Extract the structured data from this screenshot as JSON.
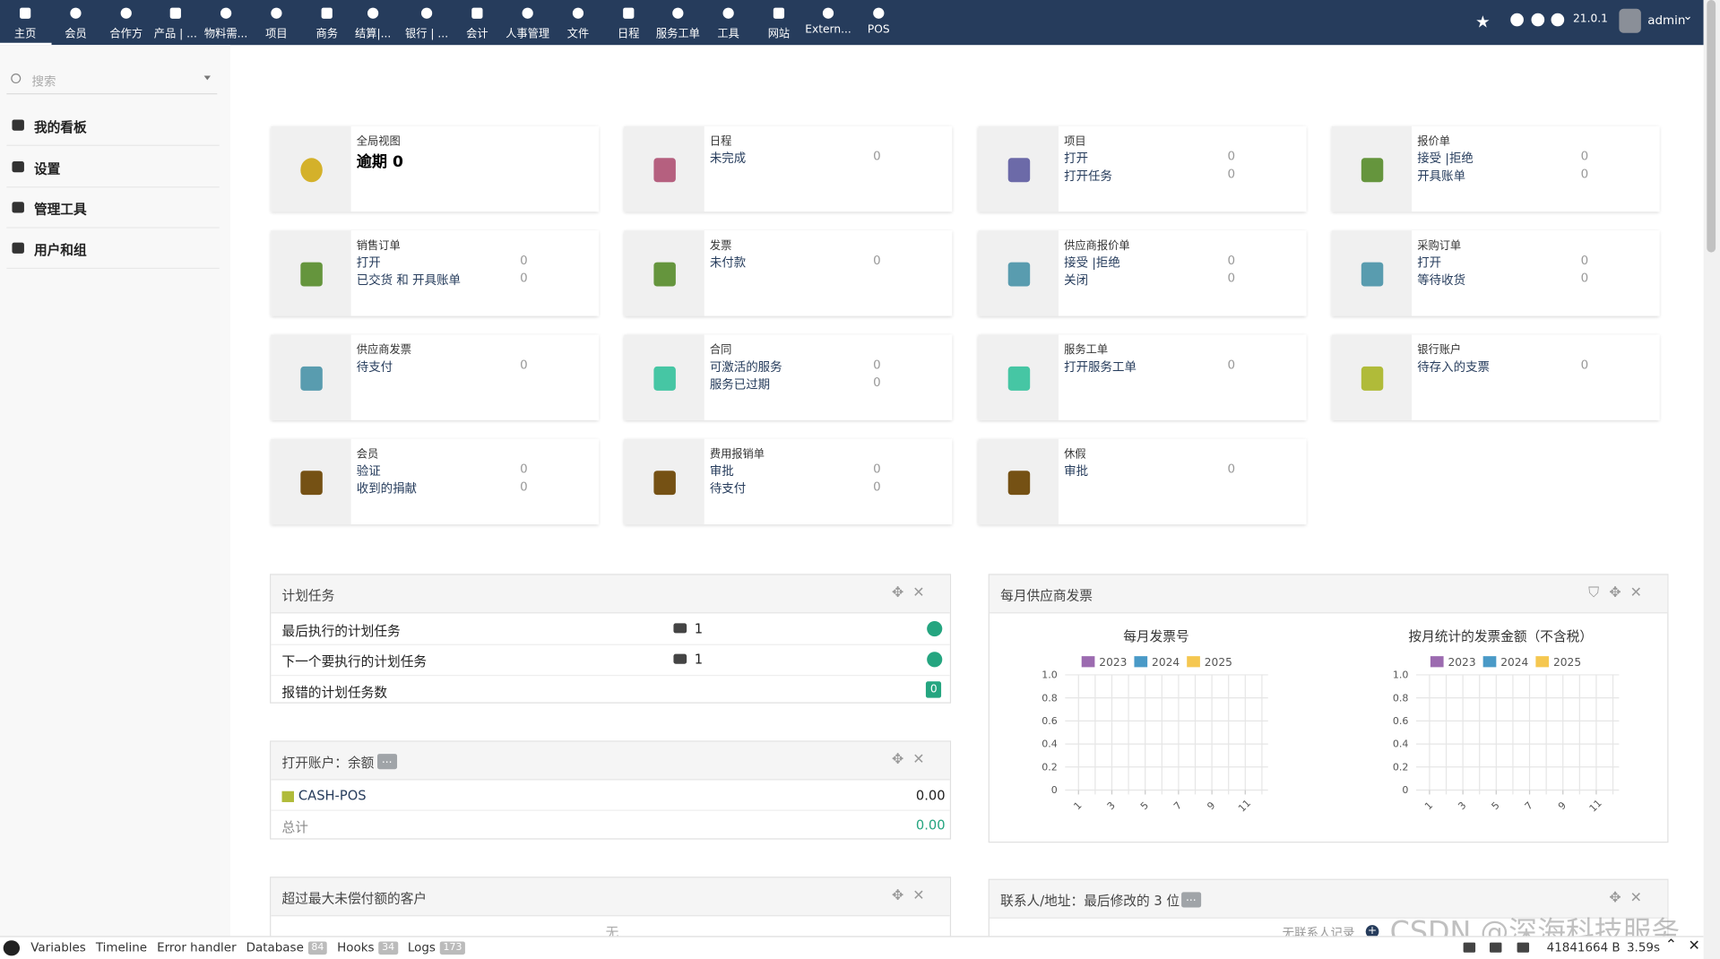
{
  "topbar": {
    "menu": [
      "主页",
      "会员",
      "合作方",
      "产品 | ...",
      "物料需...",
      "项目",
      "商务",
      "结算|...",
      "银行 | ...",
      "会计",
      "人事管理",
      "文件",
      "日程",
      "服务工单",
      "工具",
      "网站",
      "Extern...",
      "POS"
    ],
    "version": "21.0.1",
    "user": "admin"
  },
  "sidebar": {
    "search_placeholder": "搜索",
    "items": [
      "我的看板",
      "设置",
      "管理工具",
      "用户和组"
    ]
  },
  "boxes": [
    {
      "title": "全局视图",
      "headline": "逾期 0"
    },
    {
      "title": "日程",
      "lines": [
        {
          "label": "未完成",
          "value": 0
        }
      ]
    },
    {
      "title": "项目",
      "lines": [
        {
          "label": "打开",
          "value": 0
        },
        {
          "label": "打开任务",
          "value": 0
        }
      ]
    },
    {
      "title": "报价单",
      "lines": [
        {
          "label": "接受 |拒绝",
          "value": 0
        },
        {
          "label": "开具账单",
          "value": 0
        }
      ]
    },
    {
      "title": "销售订单",
      "lines": [
        {
          "label": "打开",
          "value": 0
        },
        {
          "label": "已交货 和 开具账单",
          "value": 0
        }
      ]
    },
    {
      "title": "发票",
      "lines": [
        {
          "label": "未付款",
          "value": 0
        }
      ]
    },
    {
      "title": "供应商报价单",
      "lines": [
        {
          "label": "接受 |拒绝",
          "value": 0
        },
        {
          "label": "关闭",
          "value": 0
        }
      ]
    },
    {
      "title": "采购订单",
      "lines": [
        {
          "label": "打开",
          "value": 0
        },
        {
          "label": "等待收货",
          "value": 0
        }
      ]
    },
    {
      "title": "供应商发票",
      "lines": [
        {
          "label": "待支付",
          "value": 0
        }
      ]
    },
    {
      "title": "合同",
      "lines": [
        {
          "label": "可激活的服务",
          "value": 0
        },
        {
          "label": "服务已过期",
          "value": 0
        }
      ]
    },
    {
      "title": "服务工单",
      "lines": [
        {
          "label": "打开服务工单",
          "value": 0
        }
      ]
    },
    {
      "title": "银行账户",
      "lines": [
        {
          "label": "待存入的支票",
          "value": 0
        }
      ]
    },
    {
      "title": "会员",
      "lines": [
        {
          "label": "验证",
          "value": 0
        },
        {
          "label": "收到的捐献",
          "value": 0
        }
      ]
    },
    {
      "title": "费用报销单",
      "lines": [
        {
          "label": "审批",
          "value": 0
        },
        {
          "label": "待支付",
          "value": 0
        }
      ]
    },
    {
      "title": "休假",
      "lines": [
        {
          "label": "审批",
          "value": 0
        }
      ]
    }
  ],
  "cron": {
    "title": "计划任务",
    "rows": [
      {
        "label": "最后执行的计划任务",
        "value": 1
      },
      {
        "label": "下一个要执行的计划任务",
        "value": 1
      },
      {
        "label": "报错的计划任务数",
        "badge": 0
      }
    ]
  },
  "accounts": {
    "title": "打开账户：余额",
    "badge": "...",
    "rows": [
      {
        "label": "CASH-POS",
        "value": "0.00"
      },
      {
        "label": "总计",
        "value": "0.00"
      }
    ]
  },
  "overdue": {
    "title": "超过最大未偿付额的客户",
    "empty": "无"
  },
  "invoices": {
    "title": "每月供应商发票",
    "charts": [
      {
        "title": "每月发票号",
        "series": [
          {
            "name": "2023",
            "color": "#9c6bb0"
          },
          {
            "name": "2024",
            "color": "#4a9ac7"
          },
          {
            "name": "2025",
            "color": "#f5c750"
          }
        ],
        "yticks": [
          {
            "value": 1,
            "label": "1.0"
          },
          0.8,
          0.6,
          0.4,
          0.2,
          0
        ],
        "xticks": [
          1,
          3,
          5,
          7,
          9,
          11
        ]
      },
      {
        "title": "按月统计的发票金额（不含税）",
        "series": [
          {
            "name": "2023",
            "color": "#9c6bb0"
          },
          {
            "name": "2024",
            "color": "#4a9ac7"
          },
          {
            "name": "2025",
            "color": "#f5c750"
          }
        ],
        "yticks": [
          {
            "value": 1,
            "label": "1.0"
          },
          0.8,
          0.6,
          0.4,
          0.2,
          0
        ],
        "xticks": [
          1,
          3,
          5,
          7,
          9,
          11
        ]
      }
    ]
  },
  "contacts": {
    "title": "联系人/地址：最后修改的 3 位",
    "badge": "...",
    "empty": "无联系人记录"
  },
  "debugbar": {
    "items": [
      {
        "label": "Variables"
      },
      {
        "label": "Timeline"
      },
      {
        "label": "Error handler"
      },
      {
        "label": "Database",
        "badge": "84"
      },
      {
        "label": "Hooks",
        "badge": "34"
      },
      {
        "label": "Logs",
        "badge": "173"
      }
    ],
    "memory": "41841664 B",
    "time": "3.59s"
  },
  "watermark": "CSDN @深海科技服务"
}
